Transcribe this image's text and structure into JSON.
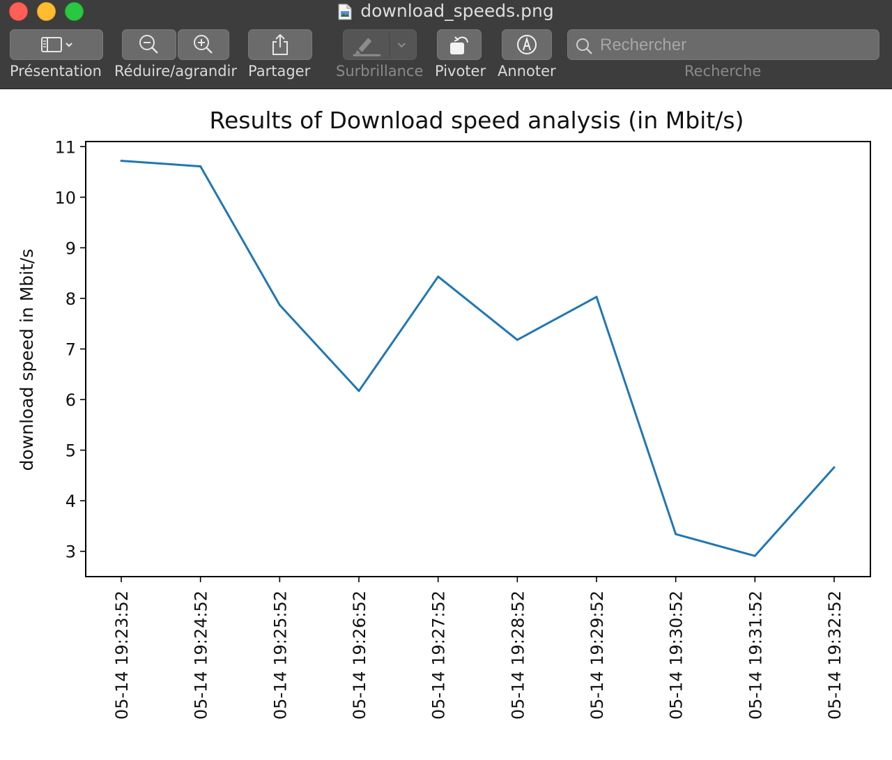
{
  "window": {
    "title": "download_speeds.png"
  },
  "toolbar": {
    "presentation_label": "Présentation",
    "zoom_label": "Réduire/agrandir",
    "share_label": "Partager",
    "highlight_label": "Surbrillance",
    "rotate_label": "Pivoter",
    "annotate_label": "Annoter",
    "search_label": "Recherche",
    "search_placeholder": "Rechercher"
  },
  "colors": {
    "line": "#1f77b4",
    "toolbar_bg": "#3d3d3d"
  },
  "chart_data": {
    "type": "line",
    "title": "Results of Download speed analysis (in Mbit/s)",
    "xlabel": "",
    "ylabel": "download speed in Mbit/s",
    "categories": [
      "05-14 19:23:52",
      "05-14 19:24:52",
      "05-14 19:25:52",
      "05-14 19:26:52",
      "05-14 19:27:52",
      "05-14 19:28:52",
      "05-14 19:29:52",
      "05-14 19:30:52",
      "05-14 19:31:52",
      "05-14 19:32:52"
    ],
    "values": [
      10.72,
      10.61,
      7.87,
      6.17,
      8.43,
      7.18,
      8.03,
      3.34,
      2.91,
      4.66
    ],
    "ylim": [
      2.5,
      11.1
    ],
    "yticks": [
      3,
      4,
      5,
      6,
      7,
      8,
      9,
      10,
      11
    ],
    "grid": false,
    "legend": "none"
  }
}
